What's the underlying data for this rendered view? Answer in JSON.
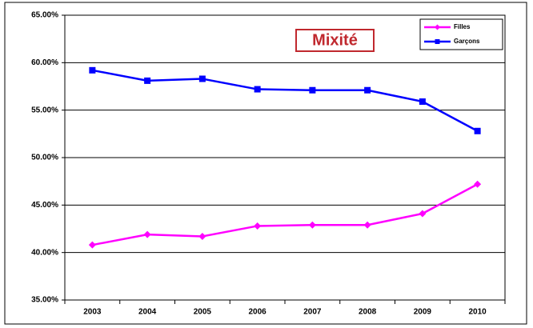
{
  "chart_data": {
    "type": "line",
    "title": "Mixité",
    "categories": [
      "2003",
      "2004",
      "2005",
      "2006",
      "2007",
      "2008",
      "2009",
      "2010"
    ],
    "series": [
      {
        "name": "Filles",
        "color": "#ff00ff",
        "marker": "diamond",
        "values": [
          40.8,
          41.9,
          41.7,
          42.8,
          42.9,
          42.9,
          44.1,
          47.2
        ]
      },
      {
        "name": "Garçons",
        "color": "#0000ff",
        "marker": "square",
        "values": [
          59.2,
          58.1,
          58.3,
          57.2,
          57.1,
          57.1,
          55.9,
          52.8
        ]
      }
    ],
    "ylim": [
      35,
      65
    ],
    "yticks": [
      {
        "value": 35,
        "label": "35.00%"
      },
      {
        "value": 40,
        "label": "40.00%"
      },
      {
        "value": 45,
        "label": "45.00%"
      },
      {
        "value": 50,
        "label": "50.00%"
      },
      {
        "value": 55,
        "label": "55.00%"
      },
      {
        "value": 60,
        "label": "60.00%"
      },
      {
        "value": 65,
        "label": "65.00%"
      }
    ],
    "grid": true,
    "legend": "upper right"
  }
}
